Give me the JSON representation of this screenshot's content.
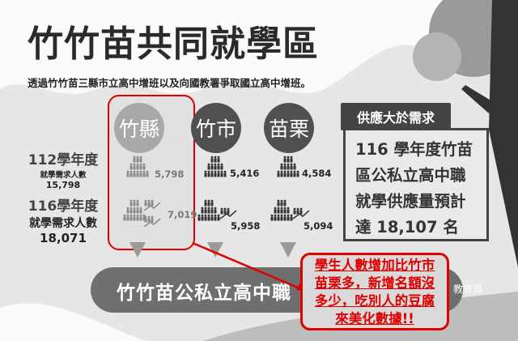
{
  "title": "竹竹苗共同就學區",
  "subtitle": "透過竹竹苗三縣市立高中增班以及向國教署爭取國立高中增班。",
  "row_labels": {
    "y112": {
      "year": "112學年度",
      "label": "就學需求人數",
      "total": "15,798"
    },
    "y116": {
      "year": "116學年度",
      "label": "就學需求人數",
      "total": "18,071"
    }
  },
  "regions": [
    {
      "name": "竹縣",
      "y112": "5,798",
      "y116": "7,019",
      "highlighted": true
    },
    {
      "name": "竹市",
      "y112": "5,416",
      "y116": "5,958"
    },
    {
      "name": "苗栗",
      "y112": "4,584",
      "y116": "5,094"
    }
  ],
  "supply": {
    "tag": "供應大於需求",
    "lines": [
      "116 學年度竹苗",
      "區公私立高中職",
      "就學供應量預計",
      "達 18,107 名"
    ]
  },
  "banner": "竹竹苗公私立高中職",
  "logo_text": "教育局",
  "callout": {
    "lines": [
      "學生人數增加比竹市",
      "苗栗多，新增名額沒",
      "多少，吃別人的豆腐",
      "來美化數據!!"
    ]
  },
  "colors": {
    "accent_red": "#e00000",
    "dark": "#444444",
    "highlight_circle": "#a8a8a8",
    "circle": "#505050"
  }
}
